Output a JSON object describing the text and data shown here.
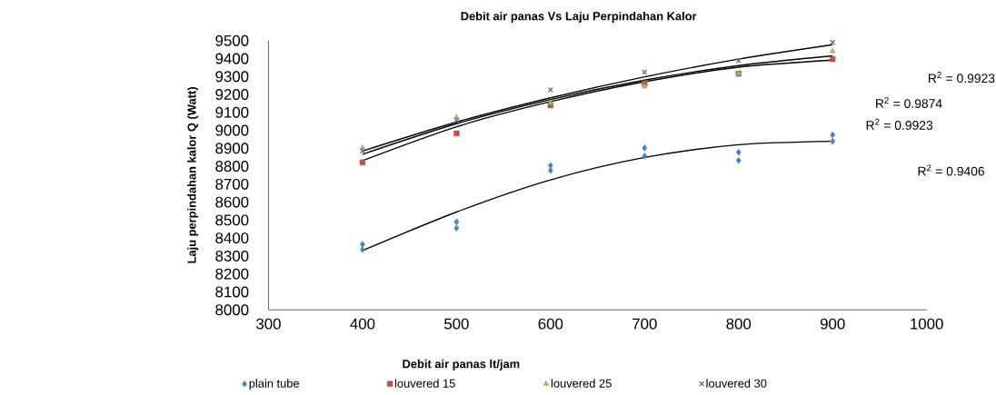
{
  "chart_data": {
    "type": "scatter",
    "title": "Debit  air panas Vs Laju Perpindahan Kalor",
    "xlabel": "Debit air panas lt/jam",
    "ylabel": "Laju perpindahan kalor Q (Watt)",
    "xlim": [
      300,
      1000
    ],
    "xticks": [
      300,
      400,
      500,
      600,
      700,
      800,
      900,
      1000
    ],
    "ylim": [
      8000,
      9500
    ],
    "yticks": [
      8000,
      8100,
      8200,
      8300,
      8400,
      8500,
      8600,
      8700,
      8800,
      8900,
      9000,
      9100,
      9200,
      9300,
      9400,
      9500
    ],
    "grid": false,
    "legend": "bottom",
    "series": [
      {
        "name": "plain tube",
        "type": "scatter",
        "marker": "diamond",
        "color": "#4f81bd",
        "x": [
          400,
          400,
          500,
          500,
          600,
          600,
          700,
          700,
          800,
          800,
          900,
          900
        ],
        "values": [
          8365,
          8335,
          8490,
          8455,
          8804,
          8777,
          8902,
          8857,
          8877,
          8832,
          8975,
          8939
        ]
      },
      {
        "name": "louvered 15",
        "type": "scatter",
        "marker": "square",
        "color": "#c0504d",
        "x": [
          400,
          500,
          600,
          700,
          800,
          900
        ],
        "values": [
          8822,
          8983,
          9140,
          9262,
          9316,
          9397
        ]
      },
      {
        "name": "louvered 25",
        "type": "scatter",
        "marker": "triangle",
        "color": "#9bbb59",
        "x": [
          400,
          500,
          600,
          700,
          800,
          900
        ],
        "values": [
          8902,
          9073,
          9153,
          9244,
          9316,
          9441
        ]
      },
      {
        "name": "louvered 30",
        "type": "scatter",
        "marker": "cross",
        "color": "#8064a2",
        "x": [
          400,
          500,
          600,
          700,
          800,
          900
        ],
        "values": [
          8885,
          9055,
          9226,
          9325,
          9388,
          9490
        ]
      },
      {
        "type": "line",
        "marker": "none",
        "color": "#000000",
        "x": [
          400,
          500,
          600,
          700,
          800,
          900
        ],
        "values": [
          8330,
          8545,
          8724,
          8849,
          8920,
          8939
        ]
      },
      {
        "type": "line",
        "marker": "none",
        "color": "#000000",
        "x": [
          400,
          500,
          600,
          700,
          800,
          900
        ],
        "values": [
          8831,
          9020,
          9160,
          9271,
          9352,
          9391
        ]
      },
      {
        "type": "line",
        "marker": "none",
        "color": "#000000",
        "x": [
          400,
          500,
          600,
          700,
          800,
          900
        ],
        "values": [
          8867,
          9037,
          9172,
          9280,
          9361,
          9415
        ]
      },
      {
        "type": "line",
        "marker": "none",
        "color": "#000000",
        "x": [
          400,
          500,
          600,
          700,
          800,
          900
        ],
        "values": [
          8885,
          9046,
          9181,
          9298,
          9397,
          9477
        ]
      }
    ],
    "annotations": [
      "R$^{2}$ = 0.9923",
      "R$^{2}$ = 0.9874",
      "R$^{2}$ = 0.9923",
      "R$^{2}$ = 0.9406"
    ]
  }
}
